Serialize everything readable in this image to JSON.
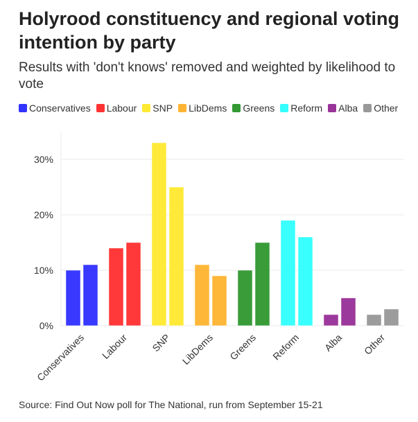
{
  "chart_data": {
    "type": "bar",
    "title": "Holyrood constituency and regional voting intention by party",
    "subtitle": "Results with 'don't knows' removed and weighted by likelihood to vote",
    "source": "Source: Find Out Now poll for The National, run from September 15-21",
    "categories": [
      "Conservatives",
      "Labour",
      "SNP",
      "LibDems",
      "Greens",
      "Reform",
      "Alba",
      "Other"
    ],
    "colors": [
      "#3333ff",
      "#ff3333",
      "#ffea33",
      "#ffb533",
      "#339933",
      "#33ffff",
      "#993399",
      "#999999"
    ],
    "series": [
      {
        "values": [
          10,
          14,
          33,
          11,
          10,
          19,
          2,
          2
        ]
      },
      {
        "values": [
          11,
          15,
          25,
          9,
          15,
          16,
          5,
          3
        ]
      }
    ],
    "ylim": [
      0,
      35
    ],
    "yticks": [
      0,
      10,
      20,
      30
    ],
    "ytick_labels": [
      "0%",
      "10%",
      "20%",
      "30%"
    ],
    "grid": true,
    "legend": "top"
  }
}
